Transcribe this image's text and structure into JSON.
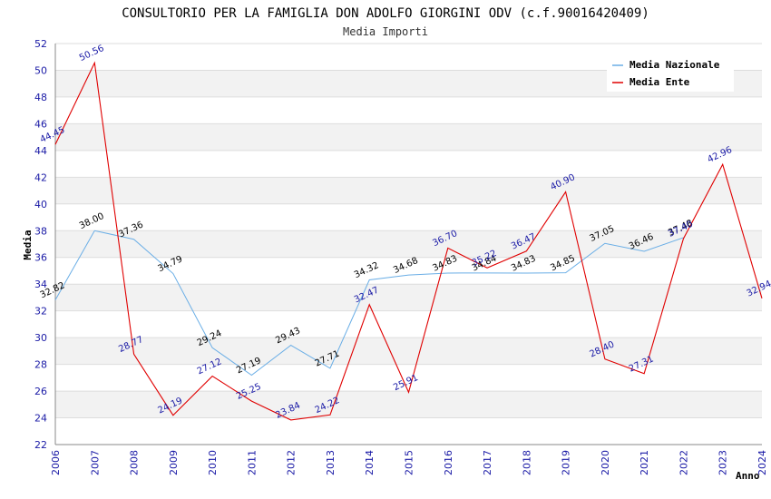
{
  "chart_data": {
    "type": "line",
    "title": "CONSULTORIO PER LA FAMIGLIA DON ADOLFO GIORGINI ODV (c.f.90016420409)",
    "subtitle": "Media Importi",
    "xlabel": "Anno",
    "ylabel": "Media",
    "ylim": [
      22,
      52
    ],
    "y_ticks": [
      "22",
      "24",
      "26",
      "28",
      "30",
      "32",
      "34",
      "36",
      "38",
      "40",
      "42",
      "44",
      "46",
      "48",
      "50",
      "52"
    ],
    "categories": [
      "2006",
      "2007",
      "2008",
      "2009",
      "2010",
      "2011",
      "2012",
      "2013",
      "2014",
      "2015",
      "2016",
      "2017",
      "2018",
      "2019",
      "2020",
      "2021",
      "2022",
      "2023",
      "2024"
    ],
    "legend_position": "top-right",
    "series": [
      {
        "name": "Media Nazionale",
        "color": "#6aaee6",
        "label_color": "#000000",
        "values": [
          32.82,
          38.0,
          37.36,
          34.79,
          29.24,
          27.19,
          29.43,
          27.71,
          34.32,
          34.68,
          34.83,
          34.84,
          34.83,
          34.85,
          37.05,
          36.46,
          37.48,
          null,
          null
        ],
        "labels": [
          "32.82",
          "38.00",
          "37.36",
          "34.79",
          "29.24",
          "27.19",
          "29.43",
          "27.71",
          "34.32",
          "34.68",
          "34.83",
          "34.84",
          "34.83",
          "34.85",
          "37.05",
          "36.46",
          "37.48",
          "",
          ""
        ]
      },
      {
        "name": "Media Ente",
        "color": "#e00000",
        "label_color": "#1a1aa6",
        "values": [
          44.45,
          50.56,
          28.77,
          24.19,
          27.12,
          25.25,
          23.84,
          24.22,
          32.47,
          25.91,
          36.7,
          35.22,
          36.47,
          40.9,
          28.4,
          27.31,
          37.4,
          42.96,
          32.94
        ],
        "labels": [
          "44.45",
          "50.56",
          "28.77",
          "24.19",
          "27.12",
          "25.25",
          "23.84",
          "24.22",
          "32.47",
          "25.91",
          "36.70",
          "35.22",
          "36.47",
          "40.90",
          "28.40",
          "27.31",
          "37.40",
          "42.96",
          "32.94"
        ]
      }
    ]
  }
}
